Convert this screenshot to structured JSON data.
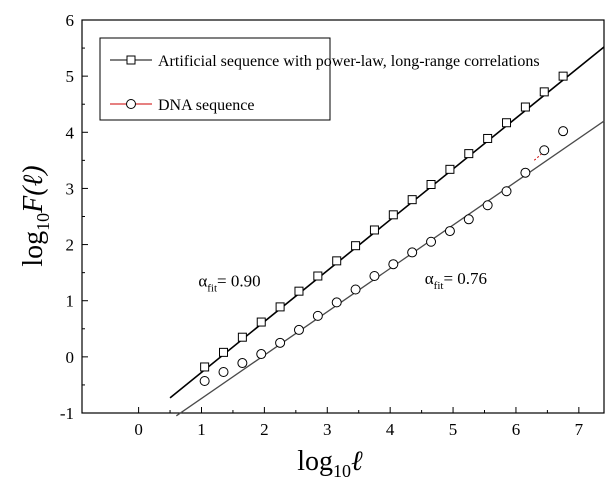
{
  "chart_data": {
    "type": "scatter",
    "title": "",
    "xlabel": {
      "base": "log",
      "sub": "10",
      "var": "ℓ"
    },
    "ylabel": {
      "base": "log",
      "sub": "10",
      "var": "F(ℓ)"
    },
    "xlim": [
      -0.9,
      7.4
    ],
    "ylim": [
      -1,
      6
    ],
    "xticks": [
      0,
      1,
      2,
      3,
      4,
      5,
      6,
      7
    ],
    "yticks": [
      -1,
      0,
      1,
      2,
      3,
      4,
      5,
      6
    ],
    "grid": false,
    "legend_position": "top-left",
    "series": [
      {
        "name": "Artificial sequence with power-law, long-range correlations",
        "marker": "square",
        "color": "#000000",
        "line_color": "#000000",
        "x": [
          1.05,
          1.35,
          1.65,
          1.95,
          2.25,
          2.55,
          2.85,
          3.15,
          3.45,
          3.75,
          4.05,
          4.35,
          4.65,
          4.95,
          5.25,
          5.55,
          5.85,
          6.15,
          6.45,
          6.75
        ],
        "y": [
          -0.18,
          0.08,
          0.35,
          0.62,
          0.89,
          1.17,
          1.44,
          1.71,
          1.98,
          2.26,
          2.53,
          2.8,
          3.07,
          3.34,
          3.62,
          3.89,
          4.17,
          4.45,
          4.72,
          5.0
        ],
        "fit": {
          "x": [
            0.5,
            7.4
          ],
          "y": [
            -0.73,
            5.52
          ]
        }
      },
      {
        "name": "DNA sequence",
        "marker": "circle",
        "color": "#000000",
        "line_color": "#cc0000",
        "x": [
          1.05,
          1.35,
          1.65,
          1.95,
          2.25,
          2.55,
          2.85,
          3.15,
          3.45,
          3.75,
          4.05,
          4.35,
          4.65,
          4.95,
          5.25,
          5.55,
          5.85,
          6.15,
          6.45,
          6.75
        ],
        "y": [
          -0.43,
          -0.27,
          -0.11,
          0.05,
          0.25,
          0.48,
          0.73,
          0.97,
          1.2,
          1.44,
          1.65,
          1.86,
          2.05,
          2.24,
          2.45,
          2.7,
          2.95,
          3.28,
          3.68,
          4.02
        ],
        "fit": {
          "x": [
            0.6,
            7.4
          ],
          "y": [
            -1.05,
            4.2
          ]
        }
      }
    ],
    "annotations": [
      {
        "symbol": "α",
        "sub": "fit",
        "text": "= 0.90",
        "x": 0.95,
        "y": 1.25
      },
      {
        "symbol": "α",
        "sub": "fit",
        "text": "= 0.76",
        "x": 4.55,
        "y": 1.3
      }
    ]
  }
}
